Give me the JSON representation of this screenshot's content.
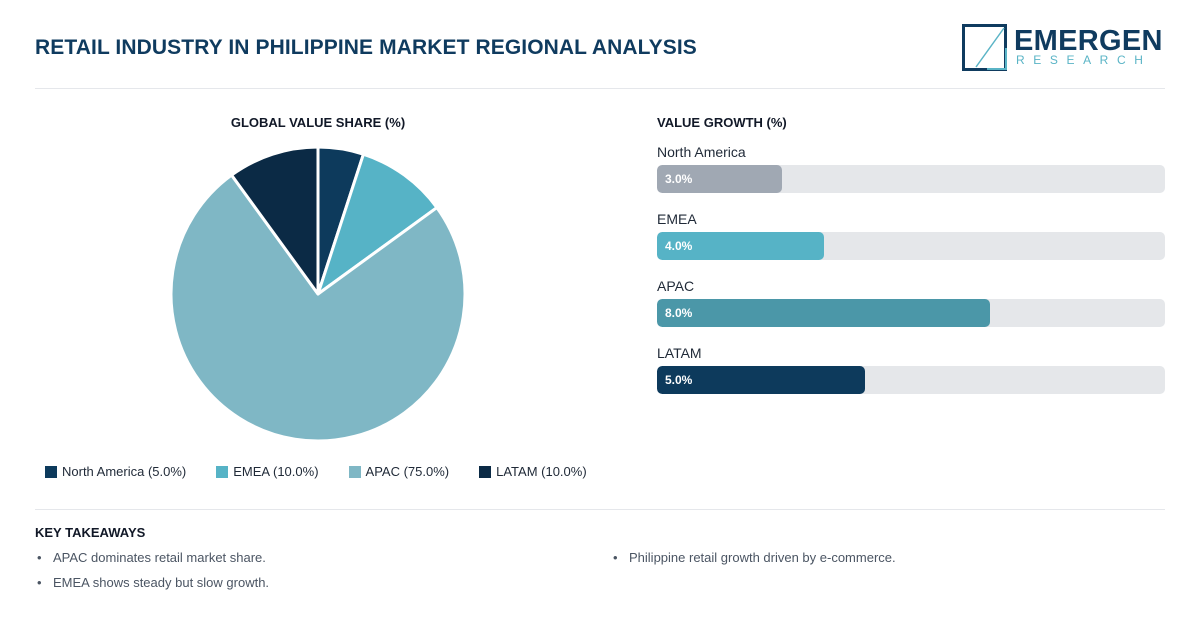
{
  "header": {
    "title": "RETAIL INDUSTRY IN PHILIPPINE MARKET REGIONAL ANALYSIS"
  },
  "logo": {
    "name": "EMERGEN",
    "sub": "RESEARCH"
  },
  "chart_data": [
    {
      "type": "pie",
      "title": "GLOBAL VALUE SHARE (%)",
      "categories": [
        "North America",
        "EMEA",
        "APAC",
        "LATAM"
      ],
      "values": [
        5.0,
        10.0,
        75.0,
        10.0
      ],
      "colors": [
        "#0d3a5c",
        "#56b3c6",
        "#7fb7c5",
        "#0b2a45"
      ],
      "legend": [
        {
          "label": "North America (5.0%)",
          "color": "#0d3a5c"
        },
        {
          "label": "EMEA (10.0%)",
          "color": "#56b3c6"
        },
        {
          "label": "APAC (75.0%)",
          "color": "#7fb7c5"
        },
        {
          "label": "LATAM (10.0%)",
          "color": "#0b2a45"
        }
      ],
      "legend_position": "bottom"
    },
    {
      "type": "bar",
      "orientation": "horizontal",
      "title": "VALUE GROWTH (%)",
      "categories": [
        "North America",
        "EMEA",
        "APAC",
        "LATAM"
      ],
      "values": [
        3.0,
        4.0,
        8.0,
        5.0
      ],
      "value_labels": [
        "3.0%",
        "4.0%",
        "8.0%",
        "5.0%"
      ],
      "colors": [
        "#a0a8b3",
        "#56b3c6",
        "#4b97a8",
        "#0d3a5c"
      ],
      "xlim": [
        0,
        12.2
      ]
    }
  ],
  "takeaways": {
    "title": "KEY TAKEAWAYS",
    "items": [
      "APAC dominates retail market share.",
      "EMEA shows steady but slow growth.",
      "Philippine retail growth driven by e-commerce."
    ]
  }
}
